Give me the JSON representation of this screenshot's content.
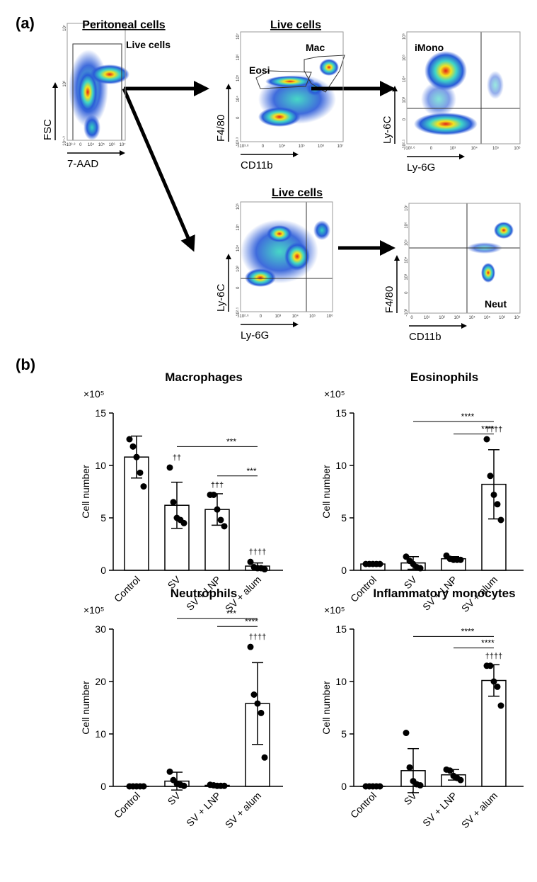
{
  "panel_a": {
    "label": "(a)",
    "plots": [
      {
        "title": "Peritoneal cells",
        "gates": [
          "Live cells"
        ],
        "xlabel": "7-AAD",
        "ylabel": "FSC",
        "xticks": [
          "-10³·³",
          "0",
          "10⁴",
          "10⁵",
          "10⁶",
          "10⁷"
        ],
        "yticks": [
          "10⁴·⁹",
          "10⁶",
          "10⁷"
        ]
      },
      {
        "title": "Live cells",
        "gates": [
          "Eosi",
          "Mac"
        ],
        "xlabel": "CD11b",
        "ylabel": "F4/80",
        "xticks": [
          "-10³·⁸",
          "0",
          "10⁴",
          "10⁵",
          "10⁶",
          "10⁷"
        ],
        "yticks": [
          "-10³·³",
          "0",
          "10⁴",
          "10⁵",
          "10⁶",
          "10⁷"
        ]
      },
      {
        "gates": [
          "iMono"
        ],
        "xlabel": "Ly-6G",
        "ylabel": "Ly-6C",
        "xticks": [
          "-10²·⁶",
          "0",
          "10³",
          "10⁴",
          "10⁵",
          "10⁶"
        ],
        "yticks": [
          "-10²·¹",
          "0",
          "10³",
          "10⁴",
          "10⁵",
          "10⁶"
        ]
      },
      {
        "title": "Live cells",
        "xlabel": "Ly-6G",
        "ylabel": "Ly-6C",
        "xticks": [
          "-10²·⁶",
          "0",
          "10³",
          "10⁴",
          "10⁵",
          "10⁶"
        ],
        "yticks": [
          "-10²·¹",
          "0",
          "10³",
          "10⁴",
          "10⁵",
          "10⁶"
        ]
      },
      {
        "gates": [
          "Neut"
        ],
        "xlabel": "CD11b",
        "ylabel": "F4/80",
        "xticks": [
          "0",
          "10¹",
          "10²",
          "10³",
          "10⁴",
          "10⁵",
          "10⁶",
          "10⁷"
        ],
        "yticks": [
          "-10³",
          "0",
          "10³",
          "10⁴",
          "10⁵",
          "10⁶",
          "10⁷"
        ]
      }
    ]
  },
  "panel_b": {
    "label": "(b)"
  },
  "chart_data": [
    {
      "type": "bar",
      "title": "Macrophages",
      "ylabel": "Cell number",
      "y_multiplier": "×10⁵",
      "categories": [
        "Control",
        "SV",
        "SV + LNP",
        "SV + alum"
      ],
      "values": [
        10.8,
        6.2,
        5.8,
        0.4
      ],
      "errors": [
        2.0,
        2.2,
        1.5,
        0.3
      ],
      "points": [
        [
          12.5,
          11.8,
          10.8,
          9.3,
          8.0
        ],
        [
          9.8,
          6.5,
          5.0,
          4.8,
          4.5
        ],
        [
          7.2,
          7.2,
          5.8,
          4.8,
          4.2
        ],
        [
          0.8,
          0.3,
          0.2,
          0.2,
          0.1
        ]
      ],
      "markers": [
        null,
        "††",
        "†††",
        "††††"
      ],
      "significance": [
        {
          "between": [
            "SV",
            "SV + alum"
          ],
          "y": 11.8,
          "label": "***"
        },
        {
          "between": [
            "SV + LNP",
            "SV + alum"
          ],
          "y": 9.0,
          "label": "***"
        }
      ],
      "ylim": [
        0,
        15
      ],
      "yticks": [
        0,
        5,
        10,
        15
      ],
      "color": "#000000"
    },
    {
      "type": "bar",
      "title": "Eosinophils",
      "ylabel": "Cell number",
      "y_multiplier": "×10⁵",
      "categories": [
        "Control",
        "SV",
        "SV + LNP",
        "SV + alum"
      ],
      "values": [
        0.6,
        0.7,
        1.1,
        8.2
      ],
      "errors": [
        0.1,
        0.6,
        0.2,
        3.3
      ],
      "points": [
        [
          0.6,
          0.6,
          0.6,
          0.6,
          0.6
        ],
        [
          1.3,
          0.9,
          0.6,
          0.3,
          0.2
        ],
        [
          1.4,
          1.1,
          1.0,
          1.0,
          1.0
        ],
        [
          12.5,
          9.0,
          7.2,
          6.3,
          4.8
        ]
      ],
      "markers": [
        null,
        null,
        null,
        "††††"
      ],
      "significance": [
        {
          "between": [
            "SV",
            "SV + alum"
          ],
          "y": 14.2,
          "label": "****"
        },
        {
          "between": [
            "SV + LNP",
            "SV + alum"
          ],
          "y": 13.0,
          "label": "****"
        }
      ],
      "ylim": [
        0,
        15
      ],
      "yticks": [
        0,
        5,
        10,
        15
      ],
      "color": "#000000"
    },
    {
      "type": "bar",
      "title": "Neutrophils",
      "ylabel": "Cell number",
      "y_multiplier": "×10⁵",
      "categories": [
        "Control",
        "SV",
        "SV + LNP",
        "SV + alum"
      ],
      "values": [
        0,
        1.0,
        0.2,
        15.8
      ],
      "errors": [
        0,
        1.7,
        0.1,
        7.8
      ],
      "points": [
        [
          0,
          0,
          0,
          0,
          0
        ],
        [
          2.8,
          1.2,
          0.5,
          0.3,
          0.1
        ],
        [
          0.3,
          0.2,
          0.1,
          0.1,
          0.1
        ],
        [
          26.6,
          17.5,
          15.8,
          14.0,
          5.5
        ]
      ],
      "markers": [
        null,
        null,
        null,
        "††††"
      ],
      "significance": [
        {
          "between": [
            "SV",
            "SV + alum"
          ],
          "y": 32.0,
          "label": "***"
        },
        {
          "between": [
            "SV + LNP",
            "SV + alum"
          ],
          "y": 30.5,
          "label": "****"
        }
      ],
      "ylim": [
        0,
        30
      ],
      "yticks": [
        0,
        10,
        20,
        30
      ],
      "color": "#000000"
    },
    {
      "type": "bar",
      "title": "Inflammatory monocytes",
      "ylabel": "Cell number",
      "y_multiplier": "×10⁵",
      "categories": [
        "Control",
        "SV",
        "SV + LNP",
        "SV + alum"
      ],
      "values": [
        0,
        1.5,
        1.1,
        10.1
      ],
      "errors": [
        0,
        2.1,
        0.5,
        1.5
      ],
      "points": [
        [
          0,
          0,
          0,
          0,
          0
        ],
        [
          5.1,
          1.8,
          0.5,
          0.2,
          0.1
        ],
        [
          1.6,
          1.5,
          1.0,
          0.8,
          0.6
        ],
        [
          11.5,
          11.5,
          10.0,
          9.5,
          7.7
        ]
      ],
      "markers": [
        null,
        null,
        null,
        "††††"
      ],
      "significance": [
        {
          "between": [
            "SV",
            "SV + alum"
          ],
          "y": 14.3,
          "label": "****"
        },
        {
          "between": [
            "SV + LNP",
            "SV + alum"
          ],
          "y": 13.2,
          "label": "****"
        }
      ],
      "ylim": [
        0,
        15
      ],
      "yticks": [
        0,
        5,
        10,
        15
      ],
      "color": "#000000"
    }
  ]
}
